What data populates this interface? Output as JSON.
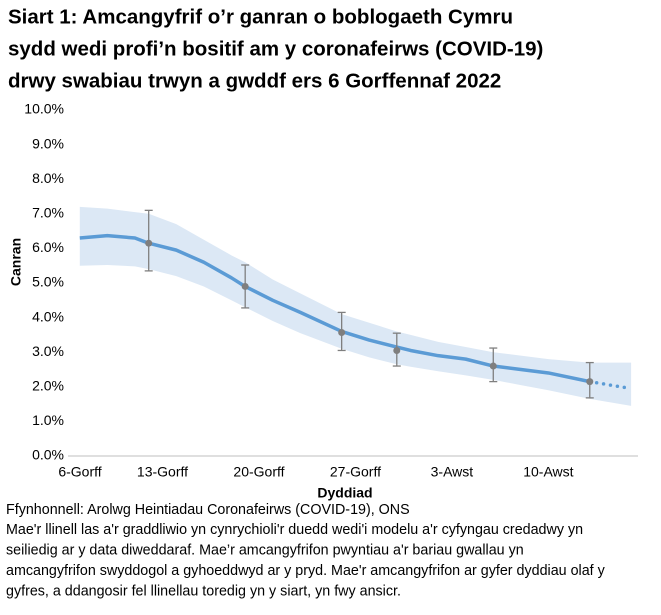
{
  "chart_data": {
    "type": "line",
    "title": [
      "Siart 1: Amcangyfrif o’r ganran o boblogaeth Cymru",
      "sydd wedi profi’n bositif am y coronafeirws (COVID-19)",
      "drwy swabiau trwyn a gwddf ers 6 Gorffennaf 2022"
    ],
    "x_label": "Dyddiad",
    "y_label": "Canran",
    "x": [
      1,
      3,
      5,
      6,
      8,
      10,
      12,
      13,
      15,
      17,
      20,
      22,
      24,
      25,
      27,
      29,
      31,
      33,
      35,
      38,
      41
    ],
    "series": [
      {
        "color": "#5b9bd5",
        "style": "solid",
        "values": [
          6.3,
          6.37,
          6.3,
          6.15,
          5.95,
          5.6,
          5.15,
          4.9,
          4.5,
          4.15,
          3.6,
          3.35,
          3.15,
          3.05,
          2.9,
          2.8,
          2.6,
          2.5,
          2.4,
          2.15,
          null
        ]
      },
      {
        "color": "#5b9bd5",
        "style": "dotted",
        "values": [
          null,
          null,
          null,
          null,
          null,
          null,
          null,
          null,
          null,
          null,
          null,
          null,
          null,
          null,
          null,
          null,
          null,
          null,
          null,
          2.15,
          1.95
        ]
      }
    ],
    "band": {
      "color": "#dce8f5",
      "upper": [
        7.2,
        7.15,
        7.05,
        7.0,
        6.7,
        6.25,
        5.8,
        5.6,
        5.1,
        4.7,
        4.1,
        3.85,
        3.6,
        3.5,
        3.3,
        3.15,
        3.0,
        2.9,
        2.8,
        2.7,
        2.7
      ],
      "lower": [
        5.5,
        5.52,
        5.48,
        5.4,
        5.2,
        4.9,
        4.5,
        4.3,
        3.9,
        3.55,
        3.1,
        2.85,
        2.65,
        2.58,
        2.45,
        2.33,
        2.2,
        2.05,
        1.9,
        1.65,
        1.45
      ]
    },
    "points": {
      "color": "#7f7f7f",
      "x": [
        6,
        13,
        20,
        24,
        31,
        38
      ],
      "values": [
        6.15,
        4.9,
        3.57,
        3.05,
        2.6,
        2.15
      ],
      "low": [
        5.35,
        4.28,
        3.05,
        2.6,
        2.15,
        1.68
      ],
      "high": [
        7.1,
        5.52,
        4.15,
        3.55,
        3.12,
        2.7
      ]
    },
    "xlim": [
      0,
      41.5
    ],
    "xticks": [
      {
        "value": 0,
        "label": "6-Gorff"
      },
      {
        "value": 7,
        "label": "13-Gorff"
      },
      {
        "value": 14,
        "label": "20-Gorff"
      },
      {
        "value": 21,
        "label": "27-Gorff"
      },
      {
        "value": 28,
        "label": "3-Awst"
      },
      {
        "value": 35,
        "label": "10-Awst"
      }
    ],
    "ylim": [
      0,
      10
    ],
    "yticks": [
      {
        "value": 0,
        "label": "0.0%"
      },
      {
        "value": 1,
        "label": "1.0%"
      },
      {
        "value": 2,
        "label": "2.0%"
      },
      {
        "value": 3,
        "label": "3.0%"
      },
      {
        "value": 4,
        "label": "4.0%"
      },
      {
        "value": 5,
        "label": "5.0%"
      },
      {
        "value": 6,
        "label": "6.0%"
      },
      {
        "value": 7,
        "label": "7.0%"
      },
      {
        "value": 8,
        "label": "8.0%"
      },
      {
        "value": 9,
        "label": "9.0%"
      },
      {
        "value": 10,
        "label": "10.0%"
      }
    ],
    "source": "Ffynhonnell: Arolwg Heintiadau Coronafeirws (COVID-19), ONS",
    "notes": [
      "Mae'r llinell las a'r graddliwio yn cynrychioli'r duedd wedi'i modelu a'r cyfyngau credadwy yn",
      "seiliedig ar y data diweddaraf. Mae’r amcangyfrifon pwyntiau a'r bariau gwallau yn",
      "amcangyfrifon swyddogol a gyhoeddwyd ar y pryd. Mae'r amcangyfrifon ar gyfer dyddiau olaf y",
      "gyfres, a ddangosir fel llinellau toredig yn y siart, yn fwy ansicr."
    ]
  }
}
